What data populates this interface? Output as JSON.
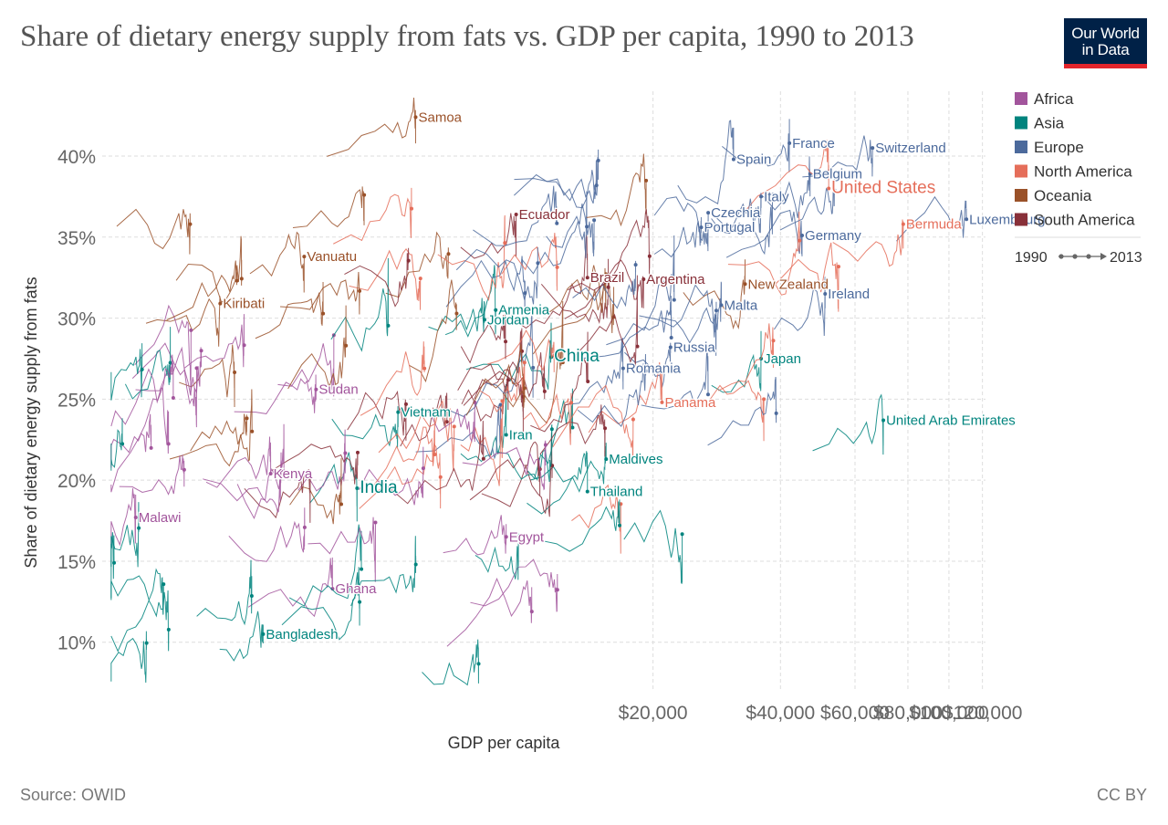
{
  "header": {
    "title": "Share of dietary energy supply from fats vs. GDP per capita, 1990 to 2013",
    "logo_line1": "Our World",
    "logo_line2": "in Data"
  },
  "footer": {
    "source": "Source: OWID",
    "license": "CC BY"
  },
  "legend": {
    "items": [
      {
        "name": "Africa",
        "color": "#a2559c"
      },
      {
        "name": "Asia",
        "color": "#00847e"
      },
      {
        "name": "Europe",
        "color": "#4c6a9c"
      },
      {
        "name": "North America",
        "color": "#e56e5a"
      },
      {
        "name": "Oceania",
        "color": "#9a5129"
      },
      {
        "name": "South America",
        "color": "#883039"
      }
    ],
    "timeline_start": "1990",
    "timeline_end": "2013"
  },
  "chart_data": {
    "type": "scatter",
    "title": "Share of dietary energy supply from fats vs. GDP per capita, 1990 to 2013",
    "xlabel": "GDP per capita",
    "ylabel": "Share of dietary energy supply from fats",
    "x_scale": "log",
    "xlim": [
      1000,
      122000
    ],
    "ylim": [
      7,
      44
    ],
    "x_ticks": [
      {
        "value": 20000,
        "label": "$20,000"
      },
      {
        "value": 40000,
        "label": "$40,000"
      },
      {
        "value": 60000,
        "label": "$60,000"
      },
      {
        "value": 80000,
        "label": "$80,000"
      },
      {
        "value": 100000,
        "label": "$100,000"
      },
      {
        "value": 120000,
        "label": "$120,000"
      }
    ],
    "y_ticks": [
      {
        "value": 10,
        "label": "10%"
      },
      {
        "value": 15,
        "label": "15%"
      },
      {
        "value": 20,
        "label": "20%"
      },
      {
        "value": 25,
        "label": "25%"
      },
      {
        "value": 30,
        "label": "30%"
      },
      {
        "value": 35,
        "label": "35%"
      },
      {
        "value": 40,
        "label": "40%"
      }
    ],
    "grid": true,
    "legend_position": "right",
    "labeled_series": [
      {
        "name": "Samoa",
        "continent": "Oceania",
        "x": 5500,
        "y": 42.4
      },
      {
        "name": "France",
        "continent": "Europe",
        "x": 42000,
        "y": 40.8
      },
      {
        "name": "Spain",
        "continent": "Europe",
        "x": 31000,
        "y": 39.8
      },
      {
        "name": "Switzerland",
        "continent": "Europe",
        "x": 66000,
        "y": 40.5
      },
      {
        "name": "Belgium",
        "continent": "Europe",
        "x": 47000,
        "y": 38.9
      },
      {
        "name": "United States",
        "continent": "North America",
        "x": 52000,
        "y": 38.0
      },
      {
        "name": "Italy",
        "continent": "Europe",
        "x": 36000,
        "y": 37.5
      },
      {
        "name": "Ecuador",
        "continent": "South America",
        "x": 9500,
        "y": 36.4
      },
      {
        "name": "Czechia",
        "continent": "Europe",
        "x": 27000,
        "y": 36.5
      },
      {
        "name": "Luxembourg",
        "continent": "Europe",
        "x": 110000,
        "y": 36.1
      },
      {
        "name": "Bermuda",
        "continent": "North America",
        "x": 78000,
        "y": 35.8
      },
      {
        "name": "Portugal",
        "continent": "Europe",
        "x": 26000,
        "y": 35.6
      },
      {
        "name": "Germany",
        "continent": "Europe",
        "x": 45000,
        "y": 35.1
      },
      {
        "name": "Vanuatu",
        "continent": "Oceania",
        "x": 3000,
        "y": 33.8
      },
      {
        "name": "Brazil",
        "continent": "South America",
        "x": 14000,
        "y": 32.5
      },
      {
        "name": "Argentina",
        "continent": "South America",
        "x": 19000,
        "y": 32.4
      },
      {
        "name": "New Zealand",
        "continent": "Oceania",
        "x": 33000,
        "y": 32.1
      },
      {
        "name": "Kiribati",
        "continent": "Oceania",
        "x": 1900,
        "y": 30.9
      },
      {
        "name": "Ireland",
        "continent": "Europe",
        "x": 51000,
        "y": 31.5
      },
      {
        "name": "Malta",
        "continent": "Europe",
        "x": 29000,
        "y": 30.8
      },
      {
        "name": "Jordan",
        "continent": "Asia",
        "x": 8000,
        "y": 29.9
      },
      {
        "name": "Armenia",
        "continent": "Asia",
        "x": 8500,
        "y": 30.5
      },
      {
        "name": "Russia",
        "continent": "Europe",
        "x": 22000,
        "y": 28.2
      },
      {
        "name": "China",
        "continent": "Asia",
        "x": 11500,
        "y": 27.6
      },
      {
        "name": "Japan",
        "continent": "Asia",
        "x": 36000,
        "y": 27.5
      },
      {
        "name": "Romania",
        "continent": "Europe",
        "x": 17000,
        "y": 26.9
      },
      {
        "name": "Sudan",
        "continent": "Africa",
        "x": 3200,
        "y": 25.6
      },
      {
        "name": "Panama",
        "continent": "North America",
        "x": 21000,
        "y": 24.8
      },
      {
        "name": "Vietnam",
        "continent": "Asia",
        "x": 5000,
        "y": 24.2
      },
      {
        "name": "United Arab Emirates",
        "continent": "Asia",
        "x": 70000,
        "y": 23.7
      },
      {
        "name": "Iran",
        "continent": "Asia",
        "x": 9000,
        "y": 22.8
      },
      {
        "name": "Maldives",
        "continent": "Asia",
        "x": 15500,
        "y": 21.3
      },
      {
        "name": "Kenya",
        "continent": "Africa",
        "x": 2500,
        "y": 20.4
      },
      {
        "name": "India",
        "continent": "Asia",
        "x": 4000,
        "y": 19.5
      },
      {
        "name": "Thailand",
        "continent": "Asia",
        "x": 14000,
        "y": 19.3
      },
      {
        "name": "Malawi",
        "continent": "Africa",
        "x": 1200,
        "y": 17.7
      },
      {
        "name": "Egypt",
        "continent": "Africa",
        "x": 9000,
        "y": 16.5
      },
      {
        "name": "Ghana",
        "continent": "Africa",
        "x": 3500,
        "y": 13.3
      },
      {
        "name": "Bangladesh",
        "continent": "Asia",
        "x": 2400,
        "y": 10.5
      }
    ]
  }
}
